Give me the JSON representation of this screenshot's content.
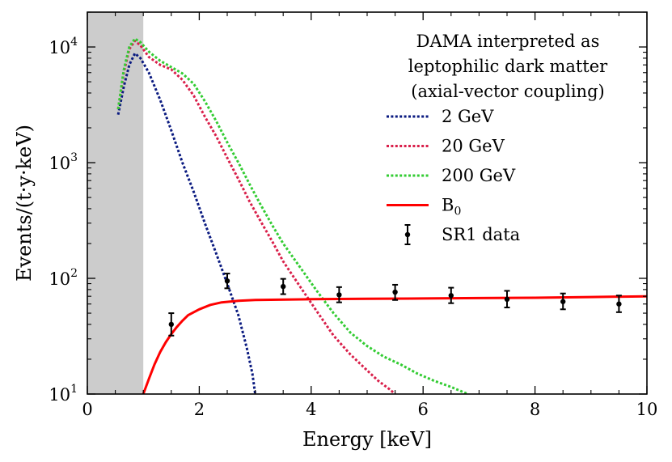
{
  "chart_data": {
    "type": "line",
    "xlabel": "Energy [keV]",
    "ylabel": "Events/(t·y·keV)",
    "xlim": [
      0,
      10
    ],
    "ylim": [
      10,
      20000
    ],
    "yscale": "log",
    "grid": false,
    "x_ticks": [
      0,
      2,
      4,
      6,
      8,
      10
    ],
    "x_tick_labels": [
      "0",
      "2",
      "4",
      "6",
      "8",
      "10"
    ],
    "y_tick_labels": [
      {
        "value": 10,
        "base": "10",
        "exp": "1"
      },
      {
        "value": 100,
        "base": "10",
        "exp": "2"
      },
      {
        "value": 1000,
        "base": "10",
        "exp": "3"
      },
      {
        "value": 10000,
        "base": "10",
        "exp": "4"
      }
    ],
    "shaded_region": {
      "x": [
        0,
        1
      ],
      "color": "#cccccc"
    },
    "legend": {
      "title_lines": [
        "DAMA interpreted as",
        "leptophilic dark matter",
        "(axial-vector coupling)"
      ],
      "placement": "top-right"
    },
    "series": [
      {
        "name": "2 GeV",
        "color": "#0a1a80",
        "style": "dotted",
        "points": [
          [
            0.55,
            2600
          ],
          [
            0.65,
            4500
          ],
          [
            0.75,
            7000
          ],
          [
            0.85,
            8800
          ],
          [
            0.95,
            8000
          ],
          [
            1.1,
            6000
          ],
          [
            1.3,
            3500
          ],
          [
            1.5,
            1900
          ],
          [
            1.7,
            1000
          ],
          [
            1.9,
            560
          ],
          [
            2.1,
            300
          ],
          [
            2.3,
            165
          ],
          [
            2.5,
            90
          ],
          [
            2.7,
            48
          ],
          [
            2.85,
            25
          ],
          [
            2.95,
            15
          ],
          [
            3.0,
            10
          ]
        ]
      },
      {
        "name": "20 GeV",
        "color": "#d91f4a",
        "style": "dotted",
        "points": [
          [
            0.55,
            2900
          ],
          [
            0.65,
            6000
          ],
          [
            0.75,
            9600
          ],
          [
            0.85,
            11300
          ],
          [
            0.95,
            10300
          ],
          [
            1.1,
            8200
          ],
          [
            1.3,
            7000
          ],
          [
            1.5,
            6400
          ],
          [
            1.7,
            5200
          ],
          [
            1.9,
            3800
          ],
          [
            2.1,
            2500
          ],
          [
            2.3,
            1700
          ],
          [
            2.5,
            1100
          ],
          [
            2.7,
            720
          ],
          [
            2.9,
            460
          ],
          [
            3.1,
            310
          ],
          [
            3.3,
            210
          ],
          [
            3.5,
            140
          ],
          [
            3.8,
            85
          ],
          [
            4.1,
            52
          ],
          [
            4.4,
            32
          ],
          [
            4.7,
            22
          ],
          [
            5.0,
            16
          ],
          [
            5.2,
            13
          ],
          [
            5.4,
            11
          ],
          [
            5.5,
            10
          ]
        ]
      },
      {
        "name": "200 GeV",
        "color": "#33cc33",
        "style": "dotted",
        "points": [
          [
            0.55,
            2900
          ],
          [
            0.65,
            6300
          ],
          [
            0.75,
            10000
          ],
          [
            0.85,
            11800
          ],
          [
            0.95,
            11000
          ],
          [
            1.1,
            9100
          ],
          [
            1.3,
            7600
          ],
          [
            1.5,
            6700
          ],
          [
            1.7,
            5900
          ],
          [
            1.9,
            4800
          ],
          [
            2.1,
            3400
          ],
          [
            2.3,
            2300
          ],
          [
            2.5,
            1500
          ],
          [
            2.7,
            1000
          ],
          [
            2.9,
            650
          ],
          [
            3.1,
            430
          ],
          [
            3.3,
            290
          ],
          [
            3.5,
            200
          ],
          [
            3.8,
            125
          ],
          [
            4.1,
            78
          ],
          [
            4.4,
            50
          ],
          [
            4.7,
            34
          ],
          [
            5.0,
            26
          ],
          [
            5.3,
            21
          ],
          [
            5.6,
            18
          ],
          [
            5.9,
            15
          ],
          [
            6.2,
            13
          ],
          [
            6.5,
            11.5
          ],
          [
            6.8,
            10
          ]
        ]
      },
      {
        "name": "B0",
        "name_base": "B",
        "name_sub": "0",
        "color": "#ff0000",
        "style": "solid",
        "points": [
          [
            1.0,
            10
          ],
          [
            1.1,
            13.5
          ],
          [
            1.2,
            18
          ],
          [
            1.3,
            23
          ],
          [
            1.4,
            28
          ],
          [
            1.5,
            33
          ],
          [
            1.6,
            38
          ],
          [
            1.7,
            43
          ],
          [
            1.8,
            48
          ],
          [
            2.0,
            54
          ],
          [
            2.2,
            59
          ],
          [
            2.4,
            62
          ],
          [
            2.7,
            64
          ],
          [
            3.0,
            65
          ],
          [
            4.0,
            66
          ],
          [
            5.0,
            66.5
          ],
          [
            6.0,
            67
          ],
          [
            7.0,
            67.5
          ],
          [
            8.0,
            68
          ],
          [
            9.0,
            69
          ],
          [
            10.0,
            70
          ]
        ]
      }
    ],
    "data_points": {
      "name": "SR1 data",
      "color": "#000000",
      "points": [
        {
          "x": 1.5,
          "y": 40,
          "lo": 32,
          "hi": 50
        },
        {
          "x": 2.5,
          "y": 95,
          "lo": 82,
          "hi": 110
        },
        {
          "x": 3.5,
          "y": 85,
          "lo": 73,
          "hi": 99
        },
        {
          "x": 4.5,
          "y": 72,
          "lo": 62,
          "hi": 84
        },
        {
          "x": 5.5,
          "y": 76,
          "lo": 65,
          "hi": 88
        },
        {
          "x": 6.5,
          "y": 71,
          "lo": 61,
          "hi": 83
        },
        {
          "x": 7.5,
          "y": 66,
          "lo": 56,
          "hi": 78
        },
        {
          "x": 8.5,
          "y": 63,
          "lo": 54,
          "hi": 74
        },
        {
          "x": 9.5,
          "y": 60,
          "lo": 51,
          "hi": 71
        }
      ]
    }
  }
}
